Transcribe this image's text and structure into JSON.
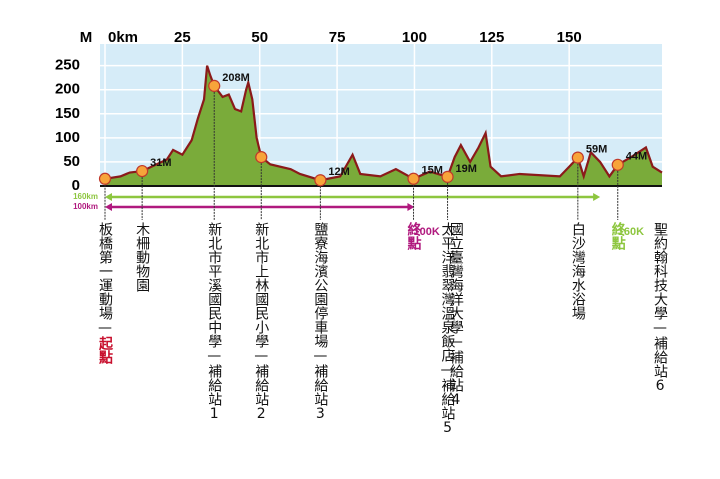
{
  "chart_data": {
    "type": "area",
    "y_unit": "M",
    "x": [
      0,
      5,
      8,
      12,
      15,
      20,
      22,
      25,
      28,
      30,
      32,
      33,
      34,
      35.3,
      38,
      40,
      42,
      44,
      45.6,
      46.3,
      47.6,
      49,
      50.5,
      53.4,
      60,
      63,
      69.6,
      76,
      80,
      82.5,
      89,
      94,
      99.7,
      105,
      110.7,
      113,
      115,
      118,
      120.7,
      123,
      124.6,
      128,
      134,
      147,
      150,
      152.8,
      154.7,
      157,
      160,
      163,
      165.7,
      170,
      174.8,
      177,
      180
    ],
    "values": [
      15,
      20,
      28,
      31,
      40,
      55,
      75,
      65,
      95,
      140,
      180,
      250,
      230,
      208,
      185,
      190,
      160,
      155,
      200,
      215,
      180,
      100,
      60,
      45,
      35,
      25,
      12,
      20,
      65,
      25,
      20,
      35,
      15,
      30,
      19,
      60,
      85,
      50,
      80,
      110,
      40,
      20,
      25,
      20,
      40,
      59,
      20,
      70,
      50,
      20,
      44,
      60,
      80,
      40,
      28
    ],
    "fill_color": "#7aab3a",
    "line_color": "#8b1a1a",
    "plot_color": "#d6ecf8",
    "markers": {
      "x": [
        0,
        12,
        35.3,
        50.5,
        69.6,
        99.7,
        110.7,
        152.8,
        165.7
      ],
      "values": [
        15,
        31,
        208,
        60,
        12,
        15,
        19,
        59,
        44
      ],
      "value_labels": [
        null,
        "31M",
        "208M",
        null,
        "12M",
        "15M",
        "19M",
        "59M",
        "44M"
      ],
      "color": "#f7a43a"
    },
    "routes": [
      {
        "label": "160km",
        "end": 160,
        "color": "#8dc63f"
      },
      {
        "label": "100km",
        "end": 100,
        "color": "#b0197e"
      }
    ],
    "xlim": [
      0,
      180
    ],
    "ylim": [
      0,
      295
    ],
    "xticks": [
      {
        "value": 0,
        "label": "0km"
      },
      25,
      50,
      75,
      100,
      125,
      150
    ],
    "yticks": [
      0,
      50,
      100,
      150,
      200,
      250
    ],
    "grid": true
  },
  "stations": [
    {
      "name": "板橋第一運動場—",
      "tag": "起點",
      "tag_color": "#c8102e"
    },
    {
      "name": "木柵動物園"
    },
    {
      "name": "新北市平溪國民中學—補給站1"
    },
    {
      "name": "新北市上林國民小學—補給站2"
    },
    {
      "name": "鹽寮海濱公園停車場—補給站3"
    },
    {
      "name": "國立臺灣海洋大學—補給站4",
      "dist": "100K",
      "tag": "終點",
      "tag_color": "#b0197e"
    },
    {
      "name": "太平洋翡翠灣溫泉飯店—補給站5"
    },
    {
      "name": "白沙灣海水浴場"
    },
    {
      "name": "聖約翰科技大學—補給站6",
      "dist": "160K",
      "tag": "終點",
      "tag_color": "#8dc63f"
    }
  ]
}
